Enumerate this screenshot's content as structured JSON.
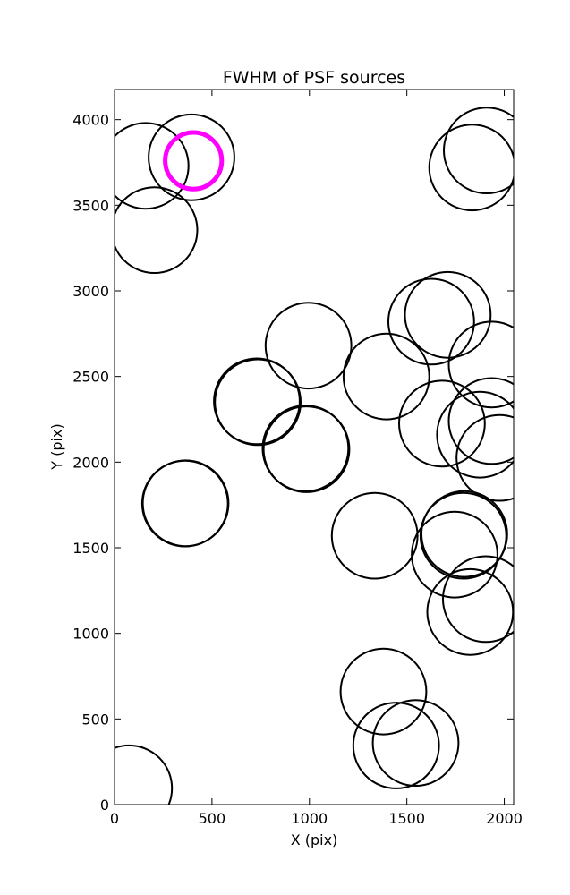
{
  "chart_data": {
    "type": "scatter",
    "title": "FWHM of PSF sources",
    "xlabel": "X (pix)",
    "ylabel": "Y (pix)",
    "xlim": [
      0,
      2048
    ],
    "ylim": [
      0,
      4176
    ],
    "xticks": [
      0,
      500,
      1000,
      1500,
      2000
    ],
    "yticks": [
      0,
      500,
      1000,
      1500,
      2000,
      2500,
      3000,
      3500,
      4000
    ],
    "grid": false,
    "legend": "none",
    "circle_radius": 220,
    "series": [
      {
        "color": "#000000",
        "points": [
          {
            "x": 160,
            "y": 3730
          },
          {
            "x": 395,
            "y": 3780
          },
          {
            "x": 205,
            "y": 3355
          },
          {
            "x": 1910,
            "y": 3820
          },
          {
            "x": 1835,
            "y": 3720
          },
          {
            "x": 1710,
            "y": 2860
          },
          {
            "x": 1625,
            "y": 2820
          },
          {
            "x": 995,
            "y": 2680
          },
          {
            "x": 1395,
            "y": 2500
          },
          {
            "x": 1935,
            "y": 2570
          },
          {
            "x": 730,
            "y": 2355
          },
          {
            "x": 735,
            "y": 2350
          },
          {
            "x": 1680,
            "y": 2225
          },
          {
            "x": 1935,
            "y": 2240
          },
          {
            "x": 1875,
            "y": 2160
          },
          {
            "x": 985,
            "y": 2075
          },
          {
            "x": 980,
            "y": 2080
          },
          {
            "x": 1975,
            "y": 2025
          },
          {
            "x": 365,
            "y": 1760
          },
          {
            "x": 362,
            "y": 1758
          },
          {
            "x": 1335,
            "y": 1570
          },
          {
            "x": 1795,
            "y": 1580
          },
          {
            "x": 1790,
            "y": 1570
          },
          {
            "x": 1745,
            "y": 1460
          },
          {
            "x": 1905,
            "y": 1200
          },
          {
            "x": 1825,
            "y": 1125
          },
          {
            "x": 1380,
            "y": 660
          },
          {
            "x": 1545,
            "y": 360
          },
          {
            "x": 1445,
            "y": 345
          },
          {
            "x": 75,
            "y": 95
          }
        ]
      },
      {
        "color": "#ff00ff",
        "points": [
          {
            "x": 405,
            "y": 3760
          }
        ]
      }
    ]
  }
}
